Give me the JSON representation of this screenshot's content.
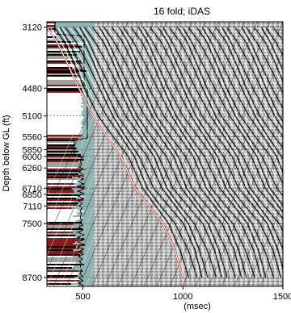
{
  "chart_data": {
    "type": "heatmap",
    "title": "16 fold; iDAS",
    "xlabel": "(msec)",
    "ylabel": "Depth below GL (ft)",
    "xlim": [
      320,
      1500
    ],
    "ylim": [
      8900,
      3000
    ],
    "x_ticks": [
      500,
      1000,
      1500
    ],
    "y_ticks": [
      3120,
      4480,
      5100,
      5560,
      5850,
      6000,
      6260,
      6710,
      6850,
      7110,
      7500,
      8700
    ],
    "first_arrival": {
      "color": "#c8322a",
      "x": [
        320,
        370,
        420,
        480,
        550,
        620,
        690,
        760,
        830,
        900,
        960,
        1000
      ],
      "y": [
        3120,
        3450,
        3900,
        4480,
        5100,
        5560,
        6000,
        6710,
        7110,
        7500,
        8100,
        8700
      ]
    },
    "grid": true,
    "lithology_track": {
      "background": "#8fb3b0",
      "colors": [
        "#ffffff",
        "#000000",
        "#8b1a1a",
        "#a0a0a0"
      ]
    }
  }
}
